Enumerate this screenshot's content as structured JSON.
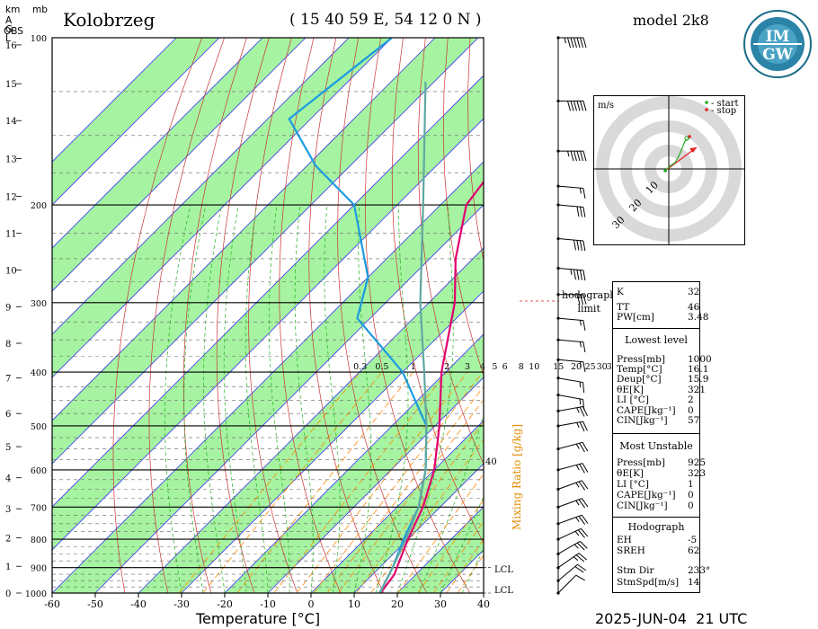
{
  "header": {
    "station": "Kolobrzeg",
    "coords": "( 15 40 59  E, 54 12 0 N )",
    "model": "model 2k8",
    "date": "2025-JUN-04",
    "time": "21 UTC"
  },
  "logo": {
    "text_top": "IM",
    "text_bottom": "GW",
    "ring_text": "INSTYTUT METEOROLOGII I GOSPODARKI WODNEJ"
  },
  "axes": {
    "km_label": "km",
    "mb_label": "mb",
    "agl_label": [
      "A",
      "G",
      "L"
    ],
    "obs_label": "OBS",
    "xlabel": "Temperature [°C]",
    "mixing_ratio_label": "Mixing Ratio [g/kg]",
    "mixing_ratio_40": "40",
    "lcl_label": "LCL"
  },
  "hodograph": {
    "units": "m/s",
    "legend_start": "- start",
    "legend_stop": "- stop",
    "ring_labels": [
      "10",
      "20",
      "30"
    ],
    "limit_label": [
      "hodograph",
      "limit"
    ]
  },
  "indices": {
    "K": "32",
    "TT": "46",
    "PW": "3.48",
    "lowest_title": "Lowest level",
    "lowest": {
      "Press": "1000",
      "Temp": "16.1",
      "Dewp": "15.9",
      "theta": "321",
      "LI": "2",
      "CAPE": "0",
      "CIN": "57"
    },
    "mu_title": "Most Unstable",
    "mu": {
      "Press": "925",
      "theta": "323",
      "LI": "1",
      "CAPE": "0",
      "CIN": "0"
    },
    "hodo_title": "Hodograph",
    "hodo": {
      "EH": "-5",
      "SREH": "62",
      "StmDir": "233°",
      "StmSpd": "14"
    },
    "labels": {
      "K": "K",
      "TT": "TT",
      "PW": "PW[cm]",
      "Press": "Press[mb]",
      "Temp": "Temp[°C]",
      "Dewp": "Deup[°C]",
      "theta": "θE[K]",
      "LI": "LI [°C]",
      "CAPE": "CAPE[Jkg⁻¹]",
      "CIN": "CIN[Jkg⁻¹]",
      "EH": "EH",
      "SREH": "SREH",
      "StmDir": "Stm Dir",
      "StmSpd": "StmSpd[m/s]"
    }
  },
  "chart_data": {
    "type": "line",
    "title": "Kolobrzeg",
    "xlabel": "Temperature [°C]",
    "ylabel": "mb",
    "x_ticks": [
      -60,
      -50,
      -40,
      -30,
      -20,
      -10,
      0,
      10,
      20,
      30,
      40
    ],
    "p_ticks": [
      100,
      200,
      300,
      400,
      500,
      600,
      700,
      800,
      900,
      1000
    ],
    "km_ticks": [
      0,
      1,
      2,
      3,
      4,
      5,
      6,
      7,
      8,
      9,
      10,
      11,
      12,
      13,
      14,
      15,
      16
    ],
    "mixing_ratio_labels": [
      "0.3",
      "0.5",
      "1",
      "2",
      "3",
      "4",
      "5",
      "6",
      "8",
      "10",
      "15",
      "20",
      "25",
      "30",
      "35"
    ],
    "series": [
      {
        "name": "Temperature",
        "color": "#e0006f",
        "points": [
          [
            100,
            -74
          ],
          [
            150,
            -58
          ],
          [
            200,
            -54
          ],
          [
            250,
            -44
          ],
          [
            300,
            -34
          ],
          [
            400,
            -21
          ],
          [
            500,
            -9
          ],
          [
            600,
            0
          ],
          [
            700,
            6
          ],
          [
            800,
            10
          ],
          [
            900,
            14
          ],
          [
            925,
            15
          ],
          [
            1000,
            16.1
          ]
        ]
      },
      {
        "name": "Dew point",
        "color": "#1b9be0",
        "points": [
          [
            100,
            -110
          ],
          [
            140,
            -115
          ],
          [
            170,
            -98
          ],
          [
            200,
            -80
          ],
          [
            270,
            -60
          ],
          [
            320,
            -53
          ],
          [
            400,
            -30
          ],
          [
            500,
            -12
          ],
          [
            600,
            -2
          ],
          [
            700,
            5
          ],
          [
            800,
            9
          ],
          [
            900,
            13
          ],
          [
            1000,
            15.9
          ]
        ]
      },
      {
        "name": "Parcel",
        "color": "#5fa8a0",
        "points": [
          [
            120,
            -92
          ],
          [
            200,
            -64
          ],
          [
            300,
            -42
          ],
          [
            400,
            -25
          ],
          [
            500,
            -12
          ],
          [
            600,
            -2
          ],
          [
            700,
            5
          ],
          [
            800,
            9.5
          ],
          [
            900,
            13
          ],
          [
            1000,
            16
          ]
        ]
      }
    ],
    "lcl_pressures": [
      900,
      1000
    ]
  },
  "colors": {
    "temp": "#e0006f",
    "dewp": "#1b9be0",
    "parcel": "#5fa8a0",
    "green_band": "#a6f3a2",
    "isotherm": "#3a3af0",
    "dry_adiabat": "#cc3333",
    "moist_adiabat": "#21b21b",
    "mixing": "#ff8a00",
    "pressure_line": "#000000"
  },
  "wind_barbs": [
    {
      "p": 100,
      "dir": 270,
      "spd": 65
    },
    {
      "p": 130,
      "dir": 270,
      "spd": 60
    },
    {
      "p": 160,
      "dir": 270,
      "spd": 55
    },
    {
      "p": 185,
      "dir": 275,
      "spd": 15
    },
    {
      "p": 200,
      "dir": 275,
      "spd": 30
    },
    {
      "p": 230,
      "dir": 275,
      "spd": 40
    },
    {
      "p": 260,
      "dir": 275,
      "spd": 45
    },
    {
      "p": 290,
      "dir": 270,
      "spd": 30
    },
    {
      "p": 320,
      "dir": 275,
      "spd": 15
    },
    {
      "p": 350,
      "dir": 275,
      "spd": 15
    },
    {
      "p": 380,
      "dir": 275,
      "spd": 15
    },
    {
      "p": 410,
      "dir": 280,
      "spd": 15
    },
    {
      "p": 440,
      "dir": 280,
      "spd": 15
    },
    {
      "p": 470,
      "dir": 260,
      "spd": 25
    },
    {
      "p": 500,
      "dir": 260,
      "spd": 25
    },
    {
      "p": 550,
      "dir": 255,
      "spd": 25
    },
    {
      "p": 600,
      "dir": 255,
      "spd": 25
    },
    {
      "p": 650,
      "dir": 250,
      "spd": 25
    },
    {
      "p": 700,
      "dir": 250,
      "spd": 25
    },
    {
      "p": 750,
      "dir": 250,
      "spd": 25
    },
    {
      "p": 800,
      "dir": 245,
      "spd": 25
    },
    {
      "p": 850,
      "dir": 240,
      "spd": 25
    },
    {
      "p": 900,
      "dir": 235,
      "spd": 25
    },
    {
      "p": 950,
      "dir": 230,
      "spd": 20
    },
    {
      "p": 1000,
      "dir": 225,
      "spd": 10
    }
  ]
}
